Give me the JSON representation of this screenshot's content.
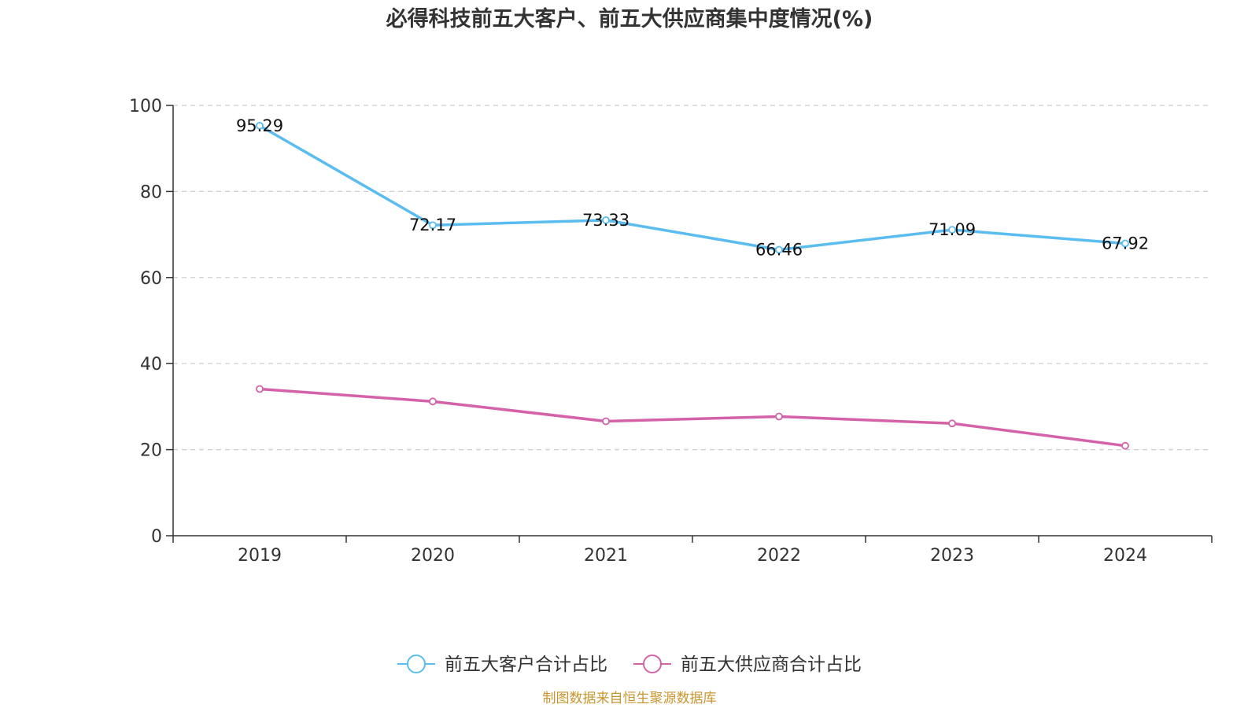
{
  "chart_data": {
    "type": "line",
    "title": "必得科技前五大客户、前五大供应商集中度情况(%)",
    "categories": [
      "2019",
      "2020",
      "2021",
      "2022",
      "2023",
      "2024"
    ],
    "ylim": [
      0,
      100
    ],
    "yticks": [
      "0",
      "20",
      "40",
      "60",
      "80",
      "100"
    ],
    "grid": true,
    "legend_position": "bottom-center",
    "series": [
      {
        "name": "前五大客户合计占比",
        "color": "#5bbcf0",
        "values": [
          95.29,
          72.17,
          73.33,
          66.46,
          71.09,
          67.92
        ],
        "labels": [
          "95.29",
          "72.17",
          "73.33",
          "66.46",
          "71.09",
          "67.92"
        ]
      },
      {
        "name": "前五大供应商合计占比",
        "color": "#d462a8",
        "values": [
          34.1,
          31.2,
          26.6,
          27.7,
          26.1,
          20.9
        ],
        "labels": []
      }
    ]
  },
  "source": {
    "text": "制图数据来自恒生聚源数据库",
    "color": "#c8962e"
  }
}
